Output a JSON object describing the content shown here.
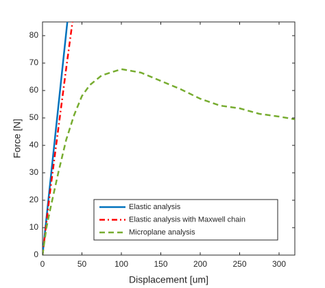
{
  "chart_data": {
    "type": "line",
    "x_label": "Displacement [um]",
    "y_label": "Force [N]",
    "xlim": [
      0,
      320
    ],
    "xticks": [
      0,
      50,
      100,
      150,
      200,
      250,
      300
    ],
    "ylim": [
      0,
      85
    ],
    "yticks": [
      0,
      10,
      20,
      30,
      40,
      50,
      60,
      70,
      80
    ],
    "legend_position": "lower right",
    "series": [
      {
        "name": "Elastic analysis",
        "color": "#0072bd",
        "style": "solid",
        "x": [
          0,
          31.5
        ],
        "values": [
          0,
          85
        ]
      },
      {
        "name": "Elastic analysis with Maxwell chain",
        "color": "#ff0000",
        "style": "dashdot",
        "x": [
          0,
          5,
          10,
          20,
          30,
          38
        ],
        "values": [
          0,
          12,
          24,
          46,
          68,
          85
        ]
      },
      {
        "name": "Microplane analysis",
        "color": "#77ac30",
        "style": "dashed",
        "x": [
          0,
          5,
          10,
          20,
          30,
          40,
          50,
          60,
          75,
          100,
          125,
          150,
          175,
          200,
          225,
          250,
          275,
          300,
          320
        ],
        "values": [
          0,
          10,
          17,
          30,
          42,
          51,
          58,
          62,
          65.5,
          67.8,
          66.5,
          63.5,
          60.5,
          57,
          54.5,
          53.5,
          51.5,
          50.5,
          49.5
        ]
      }
    ]
  }
}
